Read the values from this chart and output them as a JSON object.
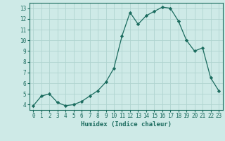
{
  "x": [
    0,
    1,
    2,
    3,
    4,
    5,
    6,
    7,
    8,
    9,
    10,
    11,
    12,
    13,
    14,
    15,
    16,
    17,
    18,
    19,
    20,
    21,
    22,
    23
  ],
  "y": [
    3.9,
    4.8,
    5.0,
    4.2,
    3.9,
    4.0,
    4.3,
    4.8,
    5.3,
    6.1,
    7.4,
    10.4,
    12.6,
    11.5,
    12.3,
    12.7,
    13.1,
    13.0,
    11.8,
    10.0,
    9.0,
    9.3,
    6.5,
    5.3
  ],
  "line_color": "#1a6b5e",
  "marker": "D",
  "marker_size": 2.2,
  "bg_color": "#ceeae7",
  "grid_color": "#b0d4d0",
  "xlabel": "Humidex (Indice chaleur)",
  "xlim": [
    -0.5,
    23.5
  ],
  "ylim": [
    3.5,
    13.5
  ],
  "yticks": [
    4,
    5,
    6,
    7,
    8,
    9,
    10,
    11,
    12,
    13
  ],
  "xticks": [
    0,
    1,
    2,
    3,
    4,
    5,
    6,
    7,
    8,
    9,
    10,
    11,
    12,
    13,
    14,
    15,
    16,
    17,
    18,
    19,
    20,
    21,
    22,
    23
  ],
  "tick_color": "#1a6b5e",
  "label_fontsize": 6.5,
  "tick_fontsize": 5.5,
  "spine_color": "#1a6b5e",
  "line_width": 0.9
}
